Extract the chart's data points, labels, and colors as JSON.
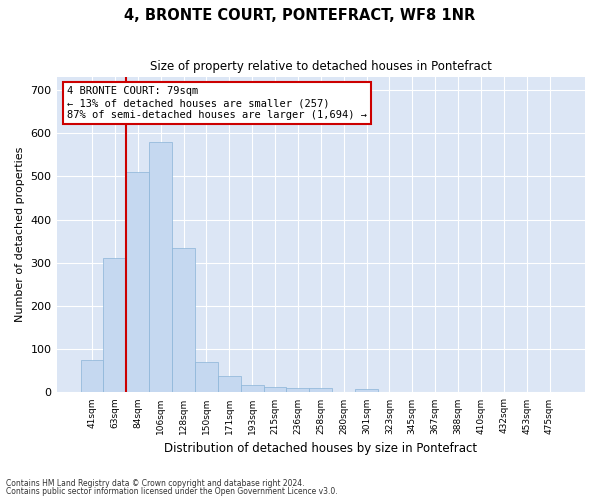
{
  "title": "4, BRONTE COURT, PONTEFRACT, WF8 1NR",
  "subtitle": "Size of property relative to detached houses in Pontefract",
  "xlabel": "Distribution of detached houses by size in Pontefract",
  "ylabel": "Number of detached properties",
  "bar_color": "#c5d8f0",
  "bar_edge_color": "#8ab4d8",
  "background_color": "#dce6f5",
  "fig_background": "#ffffff",
  "grid_color": "#ffffff",
  "annotation_text": "4 BRONTE COURT: 79sqm\n← 13% of detached houses are smaller (257)\n87% of semi-detached houses are larger (1,694) →",
  "vline_color": "#cc0000",
  "categories": [
    "41sqm",
    "63sqm",
    "84sqm",
    "106sqm",
    "128sqm",
    "150sqm",
    "171sqm",
    "193sqm",
    "215sqm",
    "236sqm",
    "258sqm",
    "280sqm",
    "301sqm",
    "323sqm",
    "345sqm",
    "367sqm",
    "388sqm",
    "410sqm",
    "432sqm",
    "453sqm",
    "475sqm"
  ],
  "values": [
    75,
    310,
    510,
    580,
    335,
    70,
    37,
    18,
    12,
    11,
    11,
    0,
    8,
    0,
    0,
    0,
    0,
    0,
    0,
    0,
    0
  ],
  "ylim": [
    0,
    730
  ],
  "yticks": [
    0,
    100,
    200,
    300,
    400,
    500,
    600,
    700
  ],
  "footnote1": "Contains HM Land Registry data © Crown copyright and database right 2024.",
  "footnote2": "Contains public sector information licensed under the Open Government Licence v3.0."
}
